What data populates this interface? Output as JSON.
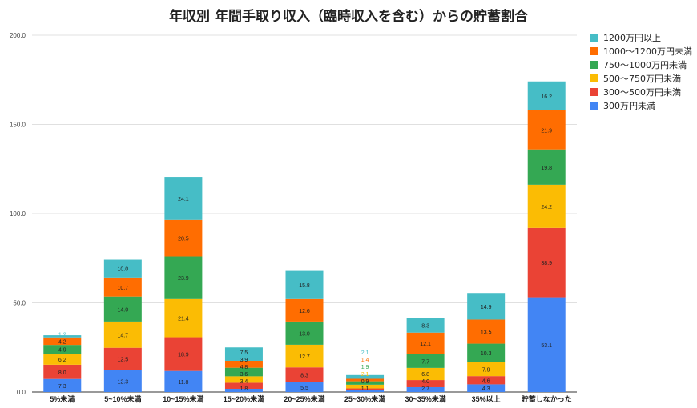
{
  "chart_data": {
    "type": "bar",
    "stacked": true,
    "title": "年収別 年間手取り収入（臨時収入を含む）からの貯蓄割合",
    "categories": [
      "5%未満",
      "5~10%未満",
      "10~15%未満",
      "15~20%未満",
      "20~25%未満",
      "25~30%未満",
      "30~35%未満",
      "35%以上",
      "貯蓄しなかった"
    ],
    "ylim": [
      0,
      200
    ],
    "yticks": [
      "0.0",
      "50.0",
      "100.0",
      "150.0",
      "200.0"
    ],
    "grid": true,
    "legend": "right",
    "series": [
      {
        "name": "300万円未満",
        "color": "#4285f4",
        "values": [
          7.3,
          12.3,
          11.8,
          1.8,
          5.5,
          1.1,
          2.7,
          4.3,
          53.1
        ]
      },
      {
        "name": "300〜500万円未満",
        "color": "#ea4335",
        "values": [
          8.0,
          12.5,
          18.9,
          3.4,
          8.3,
          0.9,
          4.0,
          4.6,
          38.9
        ]
      },
      {
        "name": "500〜750万円未満",
        "color": "#fbbc04",
        "values": [
          6.2,
          14.7,
          21.4,
          3.6,
          12.7,
          2.1,
          6.8,
          7.9,
          24.2
        ]
      },
      {
        "name": "750〜1000万円未満",
        "color": "#34a853",
        "values": [
          4.9,
          14.0,
          23.9,
          4.8,
          13.0,
          1.9,
          7.7,
          10.3,
          19.8
        ]
      },
      {
        "name": "1000〜1200万円未満",
        "color": "#ff6d01",
        "values": [
          4.2,
          10.7,
          20.5,
          3.9,
          12.6,
          1.4,
          12.1,
          13.5,
          21.9
        ]
      },
      {
        "name": "1200万円以上",
        "color": "#46bdc6",
        "values": [
          1.2,
          10.0,
          24.1,
          7.5,
          15.8,
          2.1,
          8.3,
          14.9,
          16.2
        ]
      }
    ]
  }
}
